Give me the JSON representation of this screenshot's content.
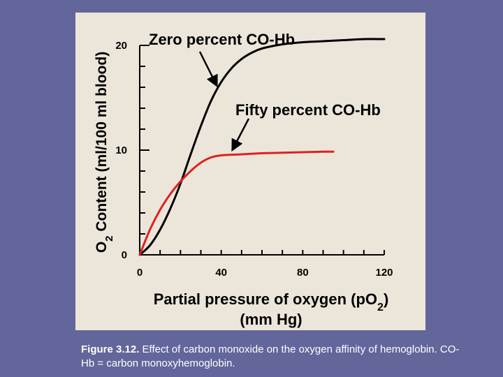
{
  "chart_data": {
    "type": "line",
    "ylabel": "O2 Content (ml/100 ml blood)",
    "ylabel_parts": {
      "main": "O",
      "sub": "2",
      "rest": " Content (ml/100 ml blood)"
    },
    "xlabel_line1": {
      "main": "Partial pressure of oxygen (pO",
      "sub": "2",
      "rest": ")"
    },
    "xlabel_line2": "(mm Hg)",
    "xlim": [
      0,
      120
    ],
    "ylim": [
      0,
      20
    ],
    "x_ticks": [
      "0",
      "40",
      "80",
      "120"
    ],
    "y_ticks": [
      "0",
      "10",
      "20"
    ],
    "grid": false,
    "series": [
      {
        "name": "Zero percent CO-Hb",
        "color": "#000000",
        "x": [
          0,
          5,
          10,
          15,
          20,
          25,
          30,
          35,
          40,
          45,
          50,
          55,
          60,
          70,
          80,
          90,
          100,
          110,
          120
        ],
        "y": [
          0,
          0.9,
          2.4,
          4.4,
          6.8,
          9.6,
          12.3,
          14.7,
          16.5,
          17.8,
          18.7,
          19.3,
          19.7,
          20.1,
          20.3,
          20.4,
          20.5,
          20.6,
          20.6
        ]
      },
      {
        "name": "Fifty percent CO-Hb",
        "color": "#e02020",
        "x": [
          0,
          5,
          10,
          15,
          20,
          25,
          30,
          35,
          40,
          50,
          60,
          70,
          80,
          90,
          95
        ],
        "y": [
          0,
          2.4,
          4.3,
          5.8,
          7.0,
          8.0,
          8.8,
          9.3,
          9.5,
          9.6,
          9.7,
          9.75,
          9.8,
          9.85,
          9.85
        ]
      }
    ]
  },
  "caption": {
    "label": "Figure 3.12.",
    "text": " Effect of carbon monoxide on the oxygen affinity of hemoglobin. CO-Hb = carbon monoxyhemoglobin."
  }
}
